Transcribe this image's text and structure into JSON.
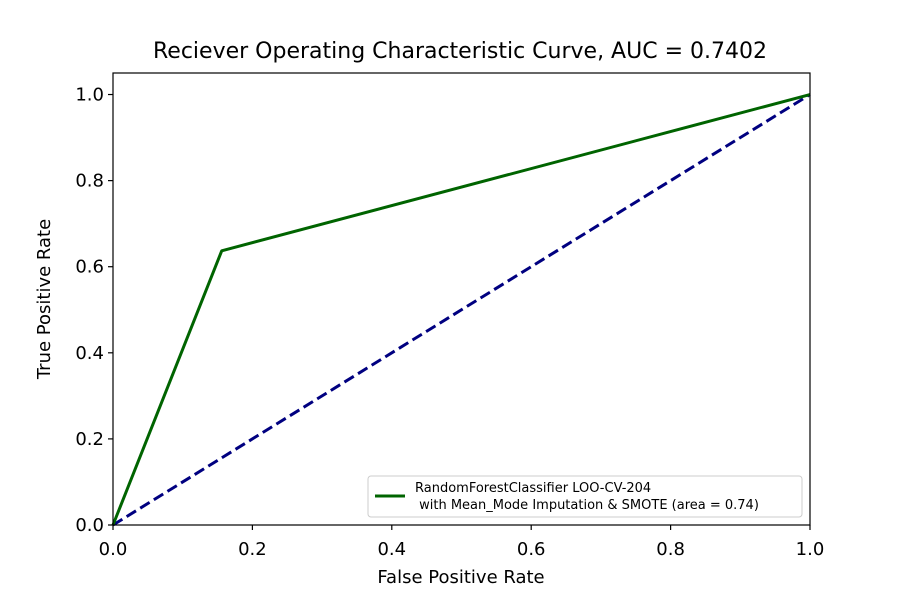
{
  "chart_data": {
    "type": "line",
    "title": "Reciever Operating Characteristic Curve, AUC = 0.7402",
    "xlabel": "False Positive Rate",
    "ylabel": "True Positive Rate",
    "xlim": [
      0.0,
      1.0
    ],
    "ylim": [
      0.0,
      1.05
    ],
    "x_ticks": [
      "0.0",
      "0.2",
      "0.4",
      "0.6",
      "0.8",
      "1.0"
    ],
    "y_ticks": [
      "0.0",
      "0.2",
      "0.4",
      "0.6",
      "0.8",
      "1.0"
    ],
    "grid": false,
    "legend_position": "lower-right",
    "series": [
      {
        "name": "RandomForestClassifier LOO-CV-204\n with Mean_Mode Imputation & SMOTE (area = 0.74)",
        "legend_line1": "RandomForestClassifier LOO-CV-204",
        "legend_line2": " with Mean_Mode Imputation & SMOTE (area = 0.74)",
        "color": "#006400",
        "style": "solid",
        "x": [
          0.0,
          0.156,
          1.0
        ],
        "y": [
          0.0,
          0.637,
          1.0
        ]
      },
      {
        "color": "#000080",
        "style": "dashed",
        "x": [
          0.0,
          1.0
        ],
        "y": [
          0.0,
          1.0
        ]
      }
    ]
  }
}
